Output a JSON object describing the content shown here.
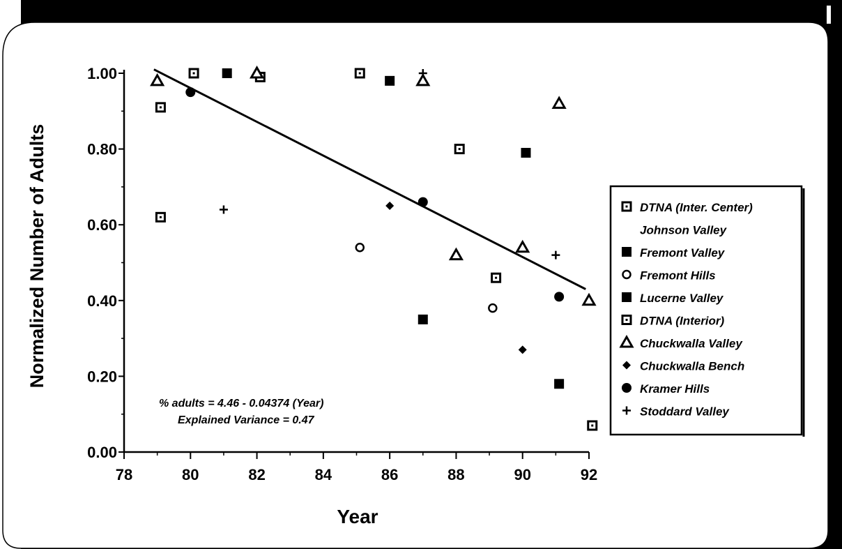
{
  "chart_data": {
    "type": "scatter",
    "xlabel": "Year",
    "ylabel": "Normalized Number of Adults",
    "xlim": [
      78,
      92
    ],
    "ylim": [
      0,
      1.0
    ],
    "x_ticks": [
      "78",
      "80",
      "82",
      "84",
      "86",
      "88",
      "90",
      "92"
    ],
    "y_ticks": [
      "0.00",
      "0.20",
      "0.40",
      "0.60",
      "0.80",
      "1.00"
    ],
    "legend_position": "right",
    "series": [
      {
        "name": "DTNA (Inter. Center)",
        "marker": "square-dot",
        "points": [
          [
            79.1,
            0.91
          ],
          [
            80.1,
            1.0
          ],
          [
            82.1,
            0.99
          ],
          [
            85.1,
            1.0
          ],
          [
            88.1,
            0.8
          ],
          [
            89.2,
            0.46
          ],
          [
            92.1,
            0.07
          ]
        ]
      },
      {
        "name": "Johnson Valley",
        "marker": "none",
        "points": []
      },
      {
        "name": "Fremont Valley",
        "marker": "filled-square",
        "points": [
          [
            81.1,
            1.0
          ],
          [
            86.0,
            0.98
          ],
          [
            87.0,
            0.35
          ],
          [
            90.1,
            0.79
          ],
          [
            91.1,
            0.18
          ]
        ]
      },
      {
        "name": "Fremont Hills",
        "marker": "open-circle",
        "points": [
          [
            85.1,
            0.54
          ],
          [
            89.1,
            0.38
          ]
        ]
      },
      {
        "name": "Lucerne Valley",
        "marker": "filled-square",
        "points": []
      },
      {
        "name": "DTNA (Interior)",
        "marker": "square-dot",
        "points": [
          [
            79.1,
            0.62
          ]
        ]
      },
      {
        "name": "Chuckwalla Valley",
        "marker": "triangle",
        "points": [
          [
            79.0,
            0.98
          ],
          [
            82.0,
            1.0
          ],
          [
            87.0,
            0.98
          ],
          [
            88.0,
            0.52
          ],
          [
            90.0,
            0.54
          ],
          [
            91.1,
            0.92
          ],
          [
            92.0,
            0.4
          ]
        ]
      },
      {
        "name": "Chuckwalla Bench",
        "marker": "diamond",
        "points": [
          [
            86.0,
            0.65
          ],
          [
            90.0,
            0.27
          ]
        ]
      },
      {
        "name": "Kramer Hills",
        "marker": "filled-circle",
        "points": [
          [
            80.0,
            0.95
          ],
          [
            87.0,
            0.66
          ],
          [
            91.1,
            0.41
          ]
        ]
      },
      {
        "name": "Stoddard Valley",
        "marker": "plus",
        "points": [
          [
            81.0,
            0.64
          ],
          [
            87.0,
            1.0
          ],
          [
            91.0,
            0.52
          ]
        ]
      }
    ],
    "regression_line": {
      "x": [
        78.9,
        91.9
      ],
      "y": [
        1.01,
        0.43
      ]
    },
    "annotations": [
      "% adults = 4.46 - 0.04374 (Year)",
      "Explained Variance = 0.47"
    ]
  }
}
